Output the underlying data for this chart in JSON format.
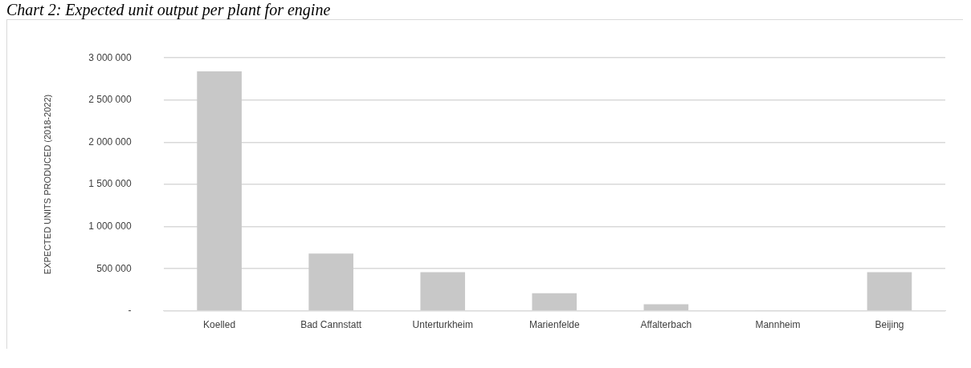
{
  "chart_data": {
    "type": "bar",
    "title": "Chart 2: Expected unit output per plant for engine",
    "ylabel": "EXPECTED UNITS PRODUCED (2018-2022)",
    "categories": [
      "Koelled",
      "Bad Cannstatt",
      "Unterturkheim",
      "Marienfelde",
      "Affalterbach",
      "Mannheim",
      "Beijing"
    ],
    "values": [
      2840000,
      680000,
      460000,
      210000,
      80000,
      5000,
      460000
    ],
    "color": "#c8c8c8",
    "ylim": [
      0,
      3000000
    ],
    "yticks": [
      {
        "value": 0,
        "label": "-"
      },
      {
        "value": 500000,
        "label": "500 000"
      },
      {
        "value": 1000000,
        "label": "1 000 000"
      },
      {
        "value": 1500000,
        "label": "1 500 000"
      },
      {
        "value": 2000000,
        "label": "2 000 000"
      },
      {
        "value": 2500000,
        "label": "2 500 000"
      },
      {
        "value": 3000000,
        "label": "3 000 000"
      }
    ],
    "grid": "y",
    "legend": false
  }
}
